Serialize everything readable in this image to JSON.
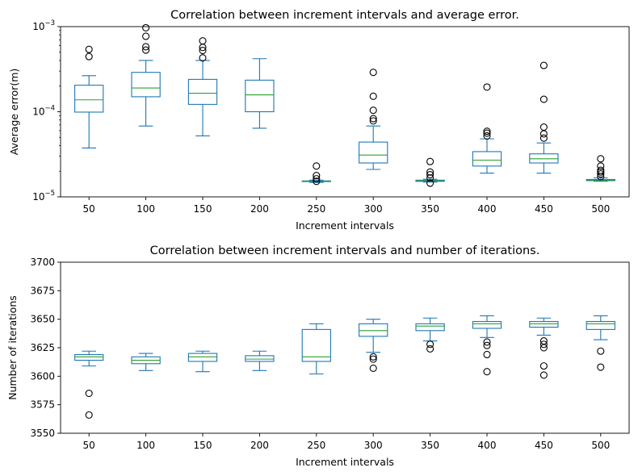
{
  "chart_data": [
    {
      "type": "box",
      "title": "Correlation between increment intervals and average error.",
      "xlabel": "Increment intervals",
      "ylabel": "Average error(m)",
      "yscale": "log",
      "ylim": [
        1e-05,
        0.001
      ],
      "yticks": [
        {
          "value": 1e-05,
          "base": "10",
          "exp": "−5"
        },
        {
          "value": 0.0001,
          "base": "10",
          "exp": "−4"
        },
        {
          "value": 0.001,
          "base": "10",
          "exp": "−3"
        }
      ],
      "categories": [
        "50",
        "100",
        "150",
        "200",
        "250",
        "300",
        "350",
        "400",
        "450",
        "500"
      ],
      "boxes": [
        {
          "whislo": 3.75e-05,
          "q1": 9.9e-05,
          "med": 0.000138,
          "q3": 0.000205,
          "whishi": 0.000265,
          "fliers": [
            0.000445,
            0.00054
          ]
        },
        {
          "whislo": 6.8e-05,
          "q1": 0.00015,
          "med": 0.00019,
          "q3": 0.00029,
          "whishi": 0.0004,
          "fliers": [
            0.00053,
            0.00058,
            0.00077,
            0.00097
          ]
        },
        {
          "whislo": 5.2e-05,
          "q1": 0.000122,
          "med": 0.000165,
          "q3": 0.00024,
          "whishi": 0.0004,
          "fliers": [
            0.00043,
            0.000525,
            0.00057,
            0.00068
          ]
        },
        {
          "whislo": 6.4e-05,
          "q1": 0.0001,
          "med": 0.000158,
          "q3": 0.000235,
          "whishi": 0.00042,
          "fliers": []
        },
        {
          "whislo": 1.48e-05,
          "q1": 1.51e-05,
          "med": 1.52e-05,
          "q3": 1.54e-05,
          "whishi": 1.57e-05,
          "fliers": [
            1.52e-05,
            1.63e-05,
            1.78e-05,
            2.3e-05
          ]
        },
        {
          "whislo": 2.1e-05,
          "q1": 2.5e-05,
          "med": 3.1e-05,
          "q3": 4.4e-05,
          "whishi": 6.8e-05,
          "fliers": [
            7.8e-05,
            8.3e-05,
            0.000104,
            0.000152,
            0.00029
          ]
        },
        {
          "whislo": 1.49e-05,
          "q1": 1.52e-05,
          "med": 1.54e-05,
          "q3": 1.57e-05,
          "whishi": 1.61e-05,
          "fliers": [
            1.45e-05,
            1.67e-05,
            1.82e-05,
            1.96e-05,
            2.6e-05
          ]
        },
        {
          "whislo": 1.9e-05,
          "q1": 2.3e-05,
          "med": 2.7e-05,
          "q3": 3.4e-05,
          "whishi": 4.8e-05,
          "fliers": [
            5.2e-05,
            5.6e-05,
            5.9e-05,
            0.000195
          ]
        },
        {
          "whislo": 1.9e-05,
          "q1": 2.5e-05,
          "med": 2.8e-05,
          "q3": 3.2e-05,
          "whishi": 4.3e-05,
          "fliers": [
            4.9e-05,
            5.5e-05,
            6.6e-05,
            0.00014,
            0.00035
          ]
        },
        {
          "whislo": 1.53e-05,
          "q1": 1.55e-05,
          "med": 1.57e-05,
          "q3": 1.6e-05,
          "whishi": 1.67e-05,
          "fliers": [
            1.73e-05,
            1.86e-05,
            1.96e-05,
            2.05e-05,
            2.3e-05,
            2.8e-05
          ]
        }
      ]
    },
    {
      "type": "box",
      "title": "Correlation between increment intervals and number of iterations.",
      "xlabel": "Increment intervals",
      "ylabel": "Number of iterations",
      "yscale": "linear",
      "ylim": [
        3550,
        3700
      ],
      "yticks": [
        {
          "value": 3550,
          "label": "3550"
        },
        {
          "value": 3575,
          "label": "3575"
        },
        {
          "value": 3600,
          "label": "3600"
        },
        {
          "value": 3625,
          "label": "3625"
        },
        {
          "value": 3650,
          "label": "3650"
        },
        {
          "value": 3675,
          "label": "3675"
        },
        {
          "value": 3700,
          "label": "3700"
        }
      ],
      "categories": [
        "50",
        "100",
        "150",
        "200",
        "250",
        "300",
        "350",
        "400",
        "450",
        "500"
      ],
      "boxes": [
        {
          "whislo": 3609,
          "q1": 3614,
          "med": 3617,
          "q3": 3619,
          "whishi": 3622,
          "fliers": [
            3585,
            3566
          ]
        },
        {
          "whislo": 3605,
          "q1": 3611,
          "med": 3614,
          "q3": 3617,
          "whishi": 3620,
          "fliers": []
        },
        {
          "whislo": 3604,
          "q1": 3613,
          "med": 3617,
          "q3": 3620,
          "whishi": 3622,
          "fliers": []
        },
        {
          "whislo": 3605,
          "q1": 3613,
          "med": 3615,
          "q3": 3618,
          "whishi": 3622,
          "fliers": []
        },
        {
          "whislo": 3602,
          "q1": 3613,
          "med": 3617,
          "q3": 3641,
          "whishi": 3646,
          "fliers": []
        },
        {
          "whislo": 3621,
          "q1": 3635,
          "med": 3640,
          "q3": 3646,
          "whishi": 3650,
          "fliers": [
            3617,
            3615,
            3607
          ]
        },
        {
          "whislo": 3631,
          "q1": 3640,
          "med": 3644,
          "q3": 3646,
          "whishi": 3651,
          "fliers": [
            3628,
            3624
          ]
        },
        {
          "whislo": 3634,
          "q1": 3642,
          "med": 3646,
          "q3": 3648,
          "whishi": 3653,
          "fliers": [
            3630,
            3627,
            3619,
            3604
          ]
        },
        {
          "whislo": 3636,
          "q1": 3643,
          "med": 3646,
          "q3": 3648,
          "whishi": 3651,
          "fliers": [
            3631,
            3628,
            3625,
            3609,
            3601
          ]
        },
        {
          "whislo": 3632,
          "q1": 3641,
          "med": 3646,
          "q3": 3648,
          "whishi": 3653,
          "fliers": [
            3622,
            3608
          ]
        }
      ]
    }
  ],
  "style": {
    "box_color": "#1f77b4",
    "median_color": "#2ca02c",
    "flier_color": "#000000",
    "axes_color": "#000000"
  }
}
